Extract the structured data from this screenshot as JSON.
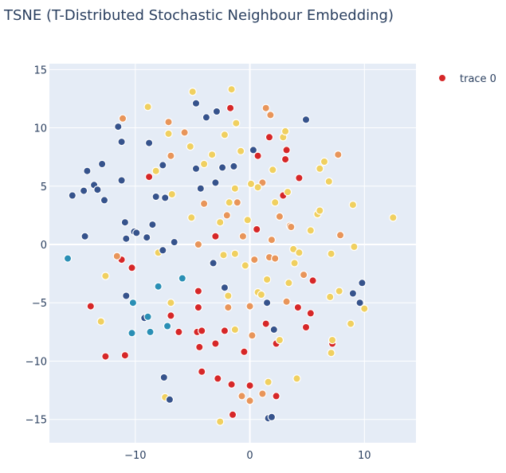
{
  "chart_data": {
    "type": "scatter",
    "title": "TSNE (T-Distributed Stochastic Neighbour Embedding)",
    "xlabel": "",
    "ylabel": "",
    "xlim": [
      -17.5,
      14.5
    ],
    "ylim": [
      -17.0,
      15.5
    ],
    "x_ticks": [
      -10,
      0,
      10
    ],
    "y_ticks": [
      15,
      10,
      5,
      0,
      -5,
      -10,
      -15
    ],
    "x_tick_labels": [
      "−10",
      "0",
      "10"
    ],
    "y_tick_labels": [
      "15",
      "10",
      "5",
      "0",
      "−5",
      "−10",
      "−15"
    ],
    "grid": true,
    "legend": {
      "position": "top-right",
      "entries": [
        "trace 0"
      ]
    },
    "colors": {
      "plot_bg": "#e5ecf6",
      "grid": "#ffffff",
      "text": "#2a3f5f",
      "legend_marker": "#d62728",
      "point_palette": [
        "#d62728",
        "#e8955a",
        "#f0d060",
        "#36538c",
        "#2a8fb5"
      ]
    },
    "series": [
      {
        "name": "trace 0",
        "points": [
          {
            "x": -12.6,
            "y": -9.6,
            "c": 0
          },
          {
            "x": -10.9,
            "y": -9.5,
            "c": 0
          },
          {
            "x": -13.9,
            "y": -5.3,
            "c": 0
          },
          {
            "x": -10.3,
            "y": -2.0,
            "c": 0
          },
          {
            "x": -11.2,
            "y": -1.3,
            "c": 0
          },
          {
            "x": -8.8,
            "y": 5.8,
            "c": 0
          },
          {
            "x": -3.0,
            "y": 0.7,
            "c": 0
          },
          {
            "x": -4.5,
            "y": -4.0,
            "c": 0
          },
          {
            "x": -4.5,
            "y": -5.4,
            "c": 0
          },
          {
            "x": -6.9,
            "y": -6.1,
            "c": 0
          },
          {
            "x": -6.2,
            "y": -7.5,
            "c": 0
          },
          {
            "x": -4.6,
            "y": -7.5,
            "c": 0
          },
          {
            "x": -4.2,
            "y": -7.4,
            "c": 0
          },
          {
            "x": -2.2,
            "y": -7.4,
            "c": 0
          },
          {
            "x": -4.4,
            "y": -8.8,
            "c": 0
          },
          {
            "x": -3.0,
            "y": -8.5,
            "c": 0
          },
          {
            "x": -4.2,
            "y": -10.9,
            "c": 0
          },
          {
            "x": -2.8,
            "y": -11.5,
            "c": 0
          },
          {
            "x": -1.6,
            "y": -12.0,
            "c": 0
          },
          {
            "x": -1.5,
            "y": -14.6,
            "c": 0
          },
          {
            "x": 0.0,
            "y": -12.1,
            "c": 0
          },
          {
            "x": -0.5,
            "y": -9.2,
            "c": 0
          },
          {
            "x": 2.3,
            "y": -8.5,
            "c": 0
          },
          {
            "x": 2.3,
            "y": -13.0,
            "c": 0
          },
          {
            "x": 1.4,
            "y": -6.8,
            "c": 0
          },
          {
            "x": 4.2,
            "y": -5.4,
            "c": 0
          },
          {
            "x": 5.3,
            "y": -5.9,
            "c": 0
          },
          {
            "x": 4.9,
            "y": -7.1,
            "c": 0
          },
          {
            "x": 7.2,
            "y": -8.5,
            "c": 0
          },
          {
            "x": 5.5,
            "y": -3.1,
            "c": 0
          },
          {
            "x": 0.6,
            "y": 1.3,
            "c": 0
          },
          {
            "x": 1.7,
            "y": 9.2,
            "c": 0
          },
          {
            "x": 3.2,
            "y": 8.1,
            "c": 0
          },
          {
            "x": 3.1,
            "y": 7.3,
            "c": 0
          },
          {
            "x": 0.7,
            "y": 7.6,
            "c": 0
          },
          {
            "x": 4.3,
            "y": 5.7,
            "c": 0
          },
          {
            "x": 2.9,
            "y": 4.2,
            "c": 0
          },
          {
            "x": -1.7,
            "y": 11.7,
            "c": 0
          },
          {
            "x": -11.1,
            "y": 10.8,
            "c": 1
          },
          {
            "x": -7.1,
            "y": 10.5,
            "c": 1
          },
          {
            "x": -6.9,
            "y": 7.6,
            "c": 1
          },
          {
            "x": -5.7,
            "y": 9.6,
            "c": 1
          },
          {
            "x": -11.6,
            "y": -1.0,
            "c": 1
          },
          {
            "x": -4.5,
            "y": 0.0,
            "c": 1
          },
          {
            "x": -3.2,
            "y": -1.6,
            "c": 1
          },
          {
            "x": -4.0,
            "y": 3.5,
            "c": 1
          },
          {
            "x": -2.0,
            "y": 2.5,
            "c": 1
          },
          {
            "x": -1.1,
            "y": 3.6,
            "c": 1
          },
          {
            "x": -1.9,
            "y": -5.4,
            "c": 1
          },
          {
            "x": 0.0,
            "y": -5.3,
            "c": 1
          },
          {
            "x": 0.2,
            "y": -7.8,
            "c": 1
          },
          {
            "x": -0.6,
            "y": 0.7,
            "c": 1
          },
          {
            "x": 0.4,
            "y": -1.3,
            "c": 1
          },
          {
            "x": 1.7,
            "y": -1.1,
            "c": 1
          },
          {
            "x": 2.2,
            "y": -1.2,
            "c": 1
          },
          {
            "x": 1.9,
            "y": 0.4,
            "c": 1
          },
          {
            "x": 2.6,
            "y": 2.4,
            "c": 1
          },
          {
            "x": 1.1,
            "y": 5.3,
            "c": 1
          },
          {
            "x": 3.5,
            "y": 1.6,
            "c": 1
          },
          {
            "x": 3.6,
            "y": 1.5,
            "c": 1
          },
          {
            "x": 3.2,
            "y": -4.9,
            "c": 1
          },
          {
            "x": 4.7,
            "y": -2.6,
            "c": 1
          },
          {
            "x": 7.9,
            "y": 0.8,
            "c": 1
          },
          {
            "x": 7.7,
            "y": 7.7,
            "c": 1
          },
          {
            "x": 1.8,
            "y": 11.1,
            "c": 1
          },
          {
            "x": 1.4,
            "y": 11.7,
            "c": 1
          },
          {
            "x": 1.1,
            "y": -12.8,
            "c": 1
          },
          {
            "x": -0.7,
            "y": -13.0,
            "c": 1
          },
          {
            "x": 0.0,
            "y": -13.4,
            "c": 1
          },
          {
            "x": -5.0,
            "y": 13.1,
            "c": 2
          },
          {
            "x": -1.6,
            "y": 13.3,
            "c": 2
          },
          {
            "x": -8.9,
            "y": 11.8,
            "c": 2
          },
          {
            "x": -7.1,
            "y": 9.5,
            "c": 2
          },
          {
            "x": -1.2,
            "y": 10.4,
            "c": 2
          },
          {
            "x": -2.2,
            "y": 9.4,
            "c": 2
          },
          {
            "x": -5.2,
            "y": 8.4,
            "c": 2
          },
          {
            "x": -3.3,
            "y": 7.7,
            "c": 2
          },
          {
            "x": -0.8,
            "y": 8.0,
            "c": 2
          },
          {
            "x": -4.0,
            "y": 6.9,
            "c": 2
          },
          {
            "x": -8.2,
            "y": 6.3,
            "c": 2
          },
          {
            "x": 2.9,
            "y": 9.2,
            "c": 2
          },
          {
            "x": 3.1,
            "y": 9.7,
            "c": 2
          },
          {
            "x": 2.0,
            "y": 6.4,
            "c": 2
          },
          {
            "x": 6.1,
            "y": 6.5,
            "c": 2
          },
          {
            "x": 6.5,
            "y": 7.1,
            "c": 2
          },
          {
            "x": 6.9,
            "y": 5.4,
            "c": 2
          },
          {
            "x": 0.1,
            "y": 5.2,
            "c": 2
          },
          {
            "x": 0.7,
            "y": 4.9,
            "c": 2
          },
          {
            "x": 2.2,
            "y": 3.6,
            "c": 2
          },
          {
            "x": 3.3,
            "y": 4.5,
            "c": 2
          },
          {
            "x": -1.3,
            "y": 4.8,
            "c": 2
          },
          {
            "x": -1.8,
            "y": 3.6,
            "c": 2
          },
          {
            "x": -6.8,
            "y": 4.3,
            "c": 2
          },
          {
            "x": -5.1,
            "y": 2.3,
            "c": 2
          },
          {
            "x": -2.6,
            "y": 1.9,
            "c": 2
          },
          {
            "x": -0.2,
            "y": 2.1,
            "c": 2
          },
          {
            "x": 5.9,
            "y": 2.6,
            "c": 2
          },
          {
            "x": 6.1,
            "y": 2.9,
            "c": 2
          },
          {
            "x": 5.3,
            "y": 1.2,
            "c": 2
          },
          {
            "x": 9.0,
            "y": 3.4,
            "c": 2
          },
          {
            "x": 12.5,
            "y": 2.3,
            "c": 2
          },
          {
            "x": 9.1,
            "y": -0.2,
            "c": 2
          },
          {
            "x": 7.1,
            "y": -0.8,
            "c": 2
          },
          {
            "x": 3.8,
            "y": -0.4,
            "c": 2
          },
          {
            "x": 4.3,
            "y": -0.7,
            "c": 2
          },
          {
            "x": 3.9,
            "y": -1.6,
            "c": 2
          },
          {
            "x": 3.4,
            "y": -3.3,
            "c": 2
          },
          {
            "x": 1.5,
            "y": -3.0,
            "c": 2
          },
          {
            "x": -2.3,
            "y": -0.9,
            "c": 2
          },
          {
            "x": -1.3,
            "y": -0.8,
            "c": 2
          },
          {
            "x": -0.4,
            "y": -1.8,
            "c": 2
          },
          {
            "x": -8.0,
            "y": -0.7,
            "c": 2
          },
          {
            "x": -12.6,
            "y": -2.7,
            "c": 2
          },
          {
            "x": -1.9,
            "y": -4.4,
            "c": 2
          },
          {
            "x": 0.7,
            "y": -4.1,
            "c": 2
          },
          {
            "x": 1.0,
            "y": -4.3,
            "c": 2
          },
          {
            "x": -6.9,
            "y": -5.0,
            "c": 2
          },
          {
            "x": -13.0,
            "y": -6.6,
            "c": 2
          },
          {
            "x": 7.0,
            "y": -4.5,
            "c": 2
          },
          {
            "x": 7.8,
            "y": -4.0,
            "c": 2
          },
          {
            "x": 10.0,
            "y": -5.5,
            "c": 2
          },
          {
            "x": 8.8,
            "y": -6.8,
            "c": 2
          },
          {
            "x": 7.2,
            "y": -8.2,
            "c": 2
          },
          {
            "x": 7.1,
            "y": -9.3,
            "c": 2
          },
          {
            "x": -1.3,
            "y": -7.3,
            "c": 2
          },
          {
            "x": 2.6,
            "y": -8.2,
            "c": 2
          },
          {
            "x": 4.1,
            "y": -11.5,
            "c": 2
          },
          {
            "x": 1.6,
            "y": -11.8,
            "c": 2
          },
          {
            "x": -7.4,
            "y": -13.1,
            "c": 2
          },
          {
            "x": -2.6,
            "y": -15.2,
            "c": 2
          },
          {
            "x": -4.7,
            "y": 12.1,
            "c": 3
          },
          {
            "x": -2.9,
            "y": 11.4,
            "c": 3
          },
          {
            "x": -3.8,
            "y": 10.9,
            "c": 3
          },
          {
            "x": -11.5,
            "y": 10.1,
            "c": 3
          },
          {
            "x": -8.8,
            "y": 8.7,
            "c": 3
          },
          {
            "x": -11.2,
            "y": 8.8,
            "c": 3
          },
          {
            "x": 4.9,
            "y": 10.7,
            "c": 3
          },
          {
            "x": 0.3,
            "y": 8.1,
            "c": 3
          },
          {
            "x": -7.6,
            "y": 6.8,
            "c": 3
          },
          {
            "x": -4.7,
            "y": 6.5,
            "c": 3
          },
          {
            "x": -2.4,
            "y": 6.6,
            "c": 3
          },
          {
            "x": -1.4,
            "y": 6.7,
            "c": 3
          },
          {
            "x": -14.2,
            "y": 6.3,
            "c": 3
          },
          {
            "x": -12.9,
            "y": 6.9,
            "c": 3
          },
          {
            "x": -11.2,
            "y": 5.5,
            "c": 3
          },
          {
            "x": -13.6,
            "y": 5.1,
            "c": 3
          },
          {
            "x": -13.3,
            "y": 4.7,
            "c": 3
          },
          {
            "x": -14.5,
            "y": 4.6,
            "c": 3
          },
          {
            "x": -15.5,
            "y": 4.2,
            "c": 3
          },
          {
            "x": -12.7,
            "y": 3.8,
            "c": 3
          },
          {
            "x": -8.2,
            "y": 4.1,
            "c": 3
          },
          {
            "x": -7.4,
            "y": 4.0,
            "c": 3
          },
          {
            "x": -4.3,
            "y": 4.8,
            "c": 3
          },
          {
            "x": -3.0,
            "y": 5.3,
            "c": 3
          },
          {
            "x": -10.9,
            "y": 1.9,
            "c": 3
          },
          {
            "x": -8.5,
            "y": 1.7,
            "c": 3
          },
          {
            "x": -10.1,
            "y": 1.1,
            "c": 3
          },
          {
            "x": -9.9,
            "y": 1.0,
            "c": 3
          },
          {
            "x": -14.4,
            "y": 0.7,
            "c": 3
          },
          {
            "x": -10.8,
            "y": 0.5,
            "c": 3
          },
          {
            "x": -9.0,
            "y": 0.6,
            "c": 3
          },
          {
            "x": -6.6,
            "y": 0.2,
            "c": 3
          },
          {
            "x": -7.6,
            "y": -0.5,
            "c": 3
          },
          {
            "x": -3.2,
            "y": -1.6,
            "c": 3
          },
          {
            "x": -2.2,
            "y": -3.7,
            "c": 3
          },
          {
            "x": -10.8,
            "y": -4.4,
            "c": 3
          },
          {
            "x": -9.2,
            "y": -6.3,
            "c": 3
          },
          {
            "x": 1.5,
            "y": -5.0,
            "c": 3
          },
          {
            "x": 2.1,
            "y": -7.3,
            "c": 3
          },
          {
            "x": 9.8,
            "y": -3.3,
            "c": 3
          },
          {
            "x": 9.6,
            "y": -5.0,
            "c": 3
          },
          {
            "x": 9.0,
            "y": -4.2,
            "c": 3
          },
          {
            "x": -7.5,
            "y": -11.4,
            "c": 3
          },
          {
            "x": -7.0,
            "y": -13.3,
            "c": 3
          },
          {
            "x": 1.6,
            "y": -14.9,
            "c": 3
          },
          {
            "x": 1.9,
            "y": -14.8,
            "c": 3
          },
          {
            "x": -15.9,
            "y": -1.2,
            "c": 4
          },
          {
            "x": -8.0,
            "y": -3.6,
            "c": 4
          },
          {
            "x": -5.9,
            "y": -2.9,
            "c": 4
          },
          {
            "x": -10.2,
            "y": -5.0,
            "c": 4
          },
          {
            "x": -8.9,
            "y": -6.2,
            "c": 4
          },
          {
            "x": -7.2,
            "y": -7.0,
            "c": 4
          },
          {
            "x": -10.3,
            "y": -7.6,
            "c": 4
          },
          {
            "x": -8.7,
            "y": -7.5,
            "c": 4
          }
        ]
      }
    ]
  }
}
